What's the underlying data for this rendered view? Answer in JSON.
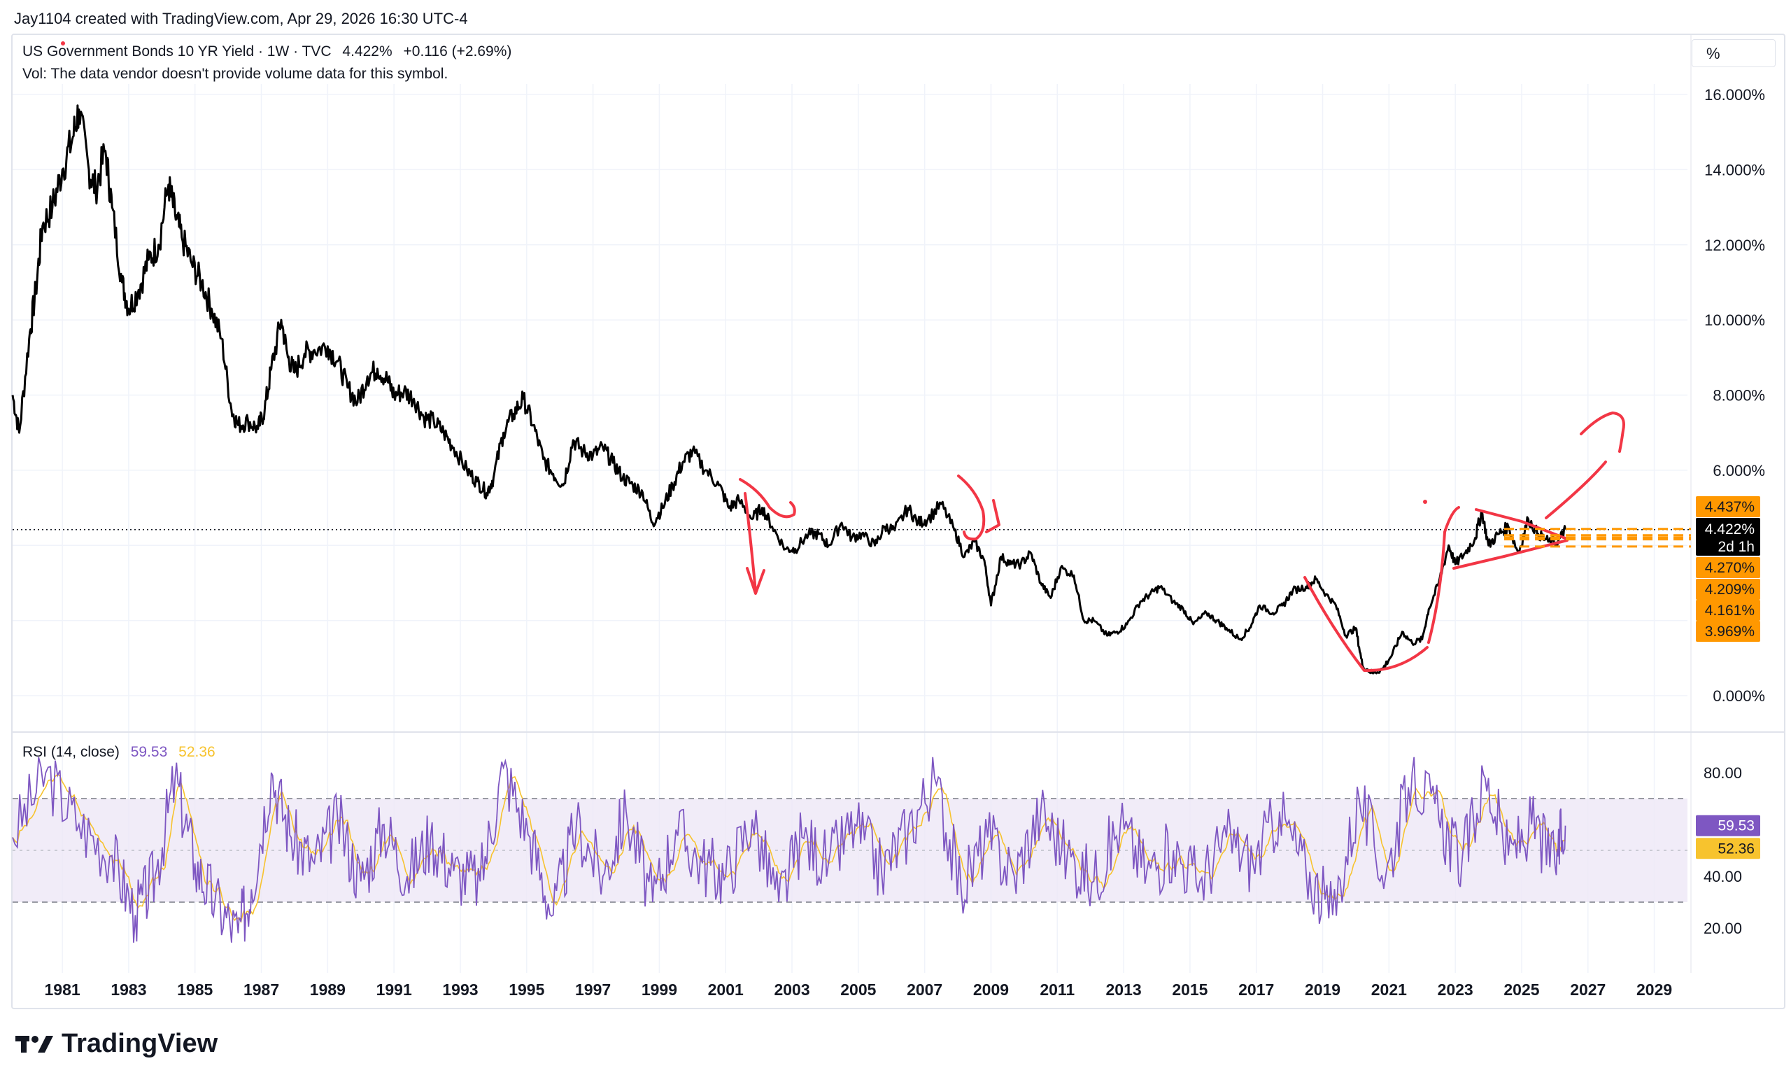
{
  "header": {
    "credit": "Jay1104 created with TradingView.com, Apr 29, 2026 16:30 UTC-4"
  },
  "legend": {
    "symbol": "US Government Bonds 10 YR Yield · 1W · TVC",
    "last": "4.422%",
    "change": "+0.116 (+2.69%)",
    "vol_note": "Vol: The data vendor doesn't provide volume data for this symbol."
  },
  "unit_button": "%",
  "rsi_legend": {
    "label": "RSI (14, close)",
    "rsi_value": "59.53",
    "ma_value": "52.36"
  },
  "footer": {
    "brand": "TradingView"
  },
  "price_labels": {
    "last_price": "4.422%",
    "countdown": "2d 1h",
    "orange": [
      "4.437%",
      "4.270%",
      "4.209%",
      "4.161%",
      "3.969%"
    ]
  },
  "rsi_labels": {
    "rsi": "59.53",
    "ma": "52.36"
  },
  "colors": {
    "price_line": "#000000",
    "rsi_line": "#7e57c2",
    "rsi_ma": "#f7c32e",
    "rsi_band": "#ede7f6",
    "annotation": "#f23645",
    "orange_label": "#ff9800"
  },
  "chart_data": {
    "type": "line",
    "title": "US Government Bonds 10 YR Yield · 1W · TVC",
    "x_ticks": [
      "1981",
      "1983",
      "1985",
      "1987",
      "1989",
      "1991",
      "1993",
      "1995",
      "1997",
      "1999",
      "2001",
      "2003",
      "2005",
      "2007",
      "2009",
      "2011",
      "2013",
      "2015",
      "2017",
      "2019",
      "2021",
      "2023",
      "2025",
      "2027",
      "2029"
    ],
    "y_ticks": [
      "16.000%",
      "14.000%",
      "12.000%",
      "10.000%",
      "8.000%",
      "6.000%",
      "0.000%"
    ],
    "ylim": [
      -1.0,
      17.5
    ],
    "series": [
      {
        "x": [
          1979.5,
          1979.7,
          1980.0,
          1980.2,
          1980.4,
          1980.7,
          1981.0,
          1981.3,
          1981.5,
          1981.8,
          1982.0,
          1982.3,
          1982.5,
          1982.8,
          1983.0,
          1983.3,
          1983.6,
          1983.9,
          1984.2,
          1984.4,
          1984.6,
          1984.9,
          1985.2,
          1985.5,
          1985.8,
          1986.1,
          1986.3,
          1986.6,
          1986.9,
          1987.1,
          1987.3,
          1987.6,
          1987.8,
          1988.0,
          1988.3,
          1988.6,
          1989.0,
          1989.3,
          1989.6,
          1989.9,
          1990.2,
          1990.5,
          1990.8,
          1991.0,
          1991.3,
          1991.6,
          1991.9,
          1992.2,
          1992.5,
          1992.8,
          1993.2,
          1993.5,
          1993.8,
          1994.0,
          1994.3,
          1994.6,
          1994.9,
          1995.2,
          1995.5,
          1995.8,
          1996.1,
          1996.4,
          1996.7,
          1997.0,
          1997.3,
          1997.6,
          1997.9,
          1998.2,
          1998.5,
          1998.8,
          1999.1,
          1999.4,
          1999.7,
          2000.0,
          2000.4,
          2000.8,
          2001.1,
          2001.4,
          2001.8,
          2002.1,
          2002.4,
          2002.8,
          2003.1,
          2003.5,
          2003.8,
          2004.1,
          2004.5,
          2004.8,
          2005.1,
          2005.5,
          2005.8,
          2006.1,
          2006.5,
          2006.8,
          2007.1,
          2007.5,
          2007.9,
          2008.2,
          2008.5,
          2008.8,
          2009.0,
          2009.3,
          2009.6,
          2009.9,
          2010.2,
          2010.5,
          2010.8,
          2011.1,
          2011.5,
          2011.8,
          2012.1,
          2012.5,
          2012.8,
          2013.1,
          2013.5,
          2013.8,
          2014.1,
          2014.5,
          2014.8,
          2015.1,
          2015.5,
          2015.8,
          2016.1,
          2016.5,
          2016.8,
          2017.1,
          2017.5,
          2017.8,
          2018.1,
          2018.5,
          2018.8,
          2019.1,
          2019.4,
          2019.7,
          2020.0,
          2020.2,
          2020.5,
          2020.8,
          2021.1,
          2021.4,
          2021.7,
          2022.0,
          2022.2,
          2022.5,
          2022.8,
          2023.0,
          2023.3,
          2023.6,
          2023.8,
          2024.0,
          2024.3,
          2024.6,
          2024.9,
          2025.2,
          2025.5,
          2025.8,
          2026.1,
          2026.32
        ],
        "values": [
          8.0,
          7.0,
          9.5,
          10.8,
          12.5,
          13.0,
          14.0,
          14.8,
          15.6,
          14.0,
          13.5,
          14.5,
          13.0,
          11.0,
          10.3,
          10.8,
          11.6,
          12.0,
          13.6,
          12.8,
          12.2,
          11.5,
          11.0,
          10.3,
          9.5,
          7.6,
          7.2,
          7.3,
          7.1,
          7.6,
          8.7,
          10.0,
          9.0,
          8.6,
          9.1,
          9.2,
          9.3,
          8.9,
          8.2,
          7.8,
          8.5,
          8.7,
          8.4,
          8.0,
          8.1,
          7.9,
          7.4,
          7.3,
          7.0,
          6.6,
          6.0,
          5.7,
          5.4,
          5.8,
          7.0,
          7.5,
          7.9,
          7.2,
          6.3,
          5.9,
          5.6,
          6.8,
          6.5,
          6.4,
          6.6,
          6.2,
          5.8,
          5.6,
          5.4,
          4.6,
          5.0,
          5.6,
          6.2,
          6.5,
          6.0,
          5.6,
          5.0,
          5.2,
          4.7,
          5.0,
          4.5,
          3.9,
          3.9,
          4.3,
          4.3,
          4.0,
          4.6,
          4.2,
          4.3,
          4.0,
          4.5,
          4.4,
          5.0,
          4.6,
          4.7,
          5.1,
          4.4,
          3.7,
          4.1,
          3.6,
          2.4,
          3.7,
          3.5,
          3.5,
          3.8,
          3.0,
          2.6,
          3.4,
          3.2,
          2.0,
          2.0,
          1.6,
          1.7,
          1.9,
          2.5,
          2.7,
          2.9,
          2.5,
          2.3,
          1.9,
          2.2,
          2.0,
          1.8,
          1.5,
          1.8,
          2.4,
          2.2,
          2.4,
          2.8,
          2.9,
          3.1,
          2.7,
          2.4,
          1.6,
          1.8,
          0.8,
          0.6,
          0.7,
          1.1,
          1.7,
          1.4,
          1.5,
          2.3,
          3.0,
          4.0,
          3.5,
          3.8,
          4.2,
          4.9,
          4.0,
          4.3,
          4.5,
          3.8,
          4.7,
          4.3,
          4.1,
          4.1,
          4.42
        ],
        "color": "#000000"
      }
    ],
    "rsi": {
      "label": "RSI (14, close)",
      "ylim": [
        0,
        100
      ],
      "y_ticks": [
        "80.00",
        "40.00",
        "20.00"
      ],
      "bands": [
        30,
        70
      ],
      "middle": 50,
      "x": [
        1979.5,
        1980.5,
        1981.5,
        1982.5,
        1983.2,
        1983.8,
        1984.4,
        1985.0,
        1985.6,
        1986.3,
        1986.7,
        1987.3,
        1987.9,
        1988.6,
        1989.3,
        1990.0,
        1990.7,
        1991.4,
        1992.1,
        1992.8,
        1993.6,
        1994.3,
        1995.1,
        1995.8,
        1996.5,
        1997.3,
        1998.0,
        1998.8,
        1999.5,
        2000.3,
        2001.0,
        2001.8,
        2002.6,
        2003.3,
        2004.1,
        2004.9,
        2005.7,
        2006.5,
        2007.3,
        2008.1,
        2008.9,
        2009.7,
        2010.5,
        2011.3,
        2012.1,
        2012.9,
        2013.7,
        2014.5,
        2015.3,
        2016.1,
        2016.9,
        2017.7,
        2018.5,
        2019.3,
        2020.1,
        2020.9,
        2021.7,
        2022.5,
        2023.2,
        2023.9,
        2024.6,
        2025.3,
        2026.0,
        2026.32
      ],
      "values": [
        55,
        80,
        60,
        48,
        25,
        40,
        78,
        45,
        30,
        18,
        35,
        80,
        55,
        45,
        62,
        38,
        60,
        40,
        55,
        42,
        38,
        82,
        55,
        25,
        60,
        40,
        65,
        30,
        58,
        45,
        40,
        62,
        30,
        55,
        45,
        60,
        42,
        58,
        78,
        35,
        55,
        40,
        65,
        48,
        38,
        60,
        42,
        50,
        38,
        55,
        45,
        65,
        42,
        25,
        70,
        40,
        80,
        62,
        45,
        78,
        48,
        60,
        45,
        59.53
      ]
    }
  }
}
